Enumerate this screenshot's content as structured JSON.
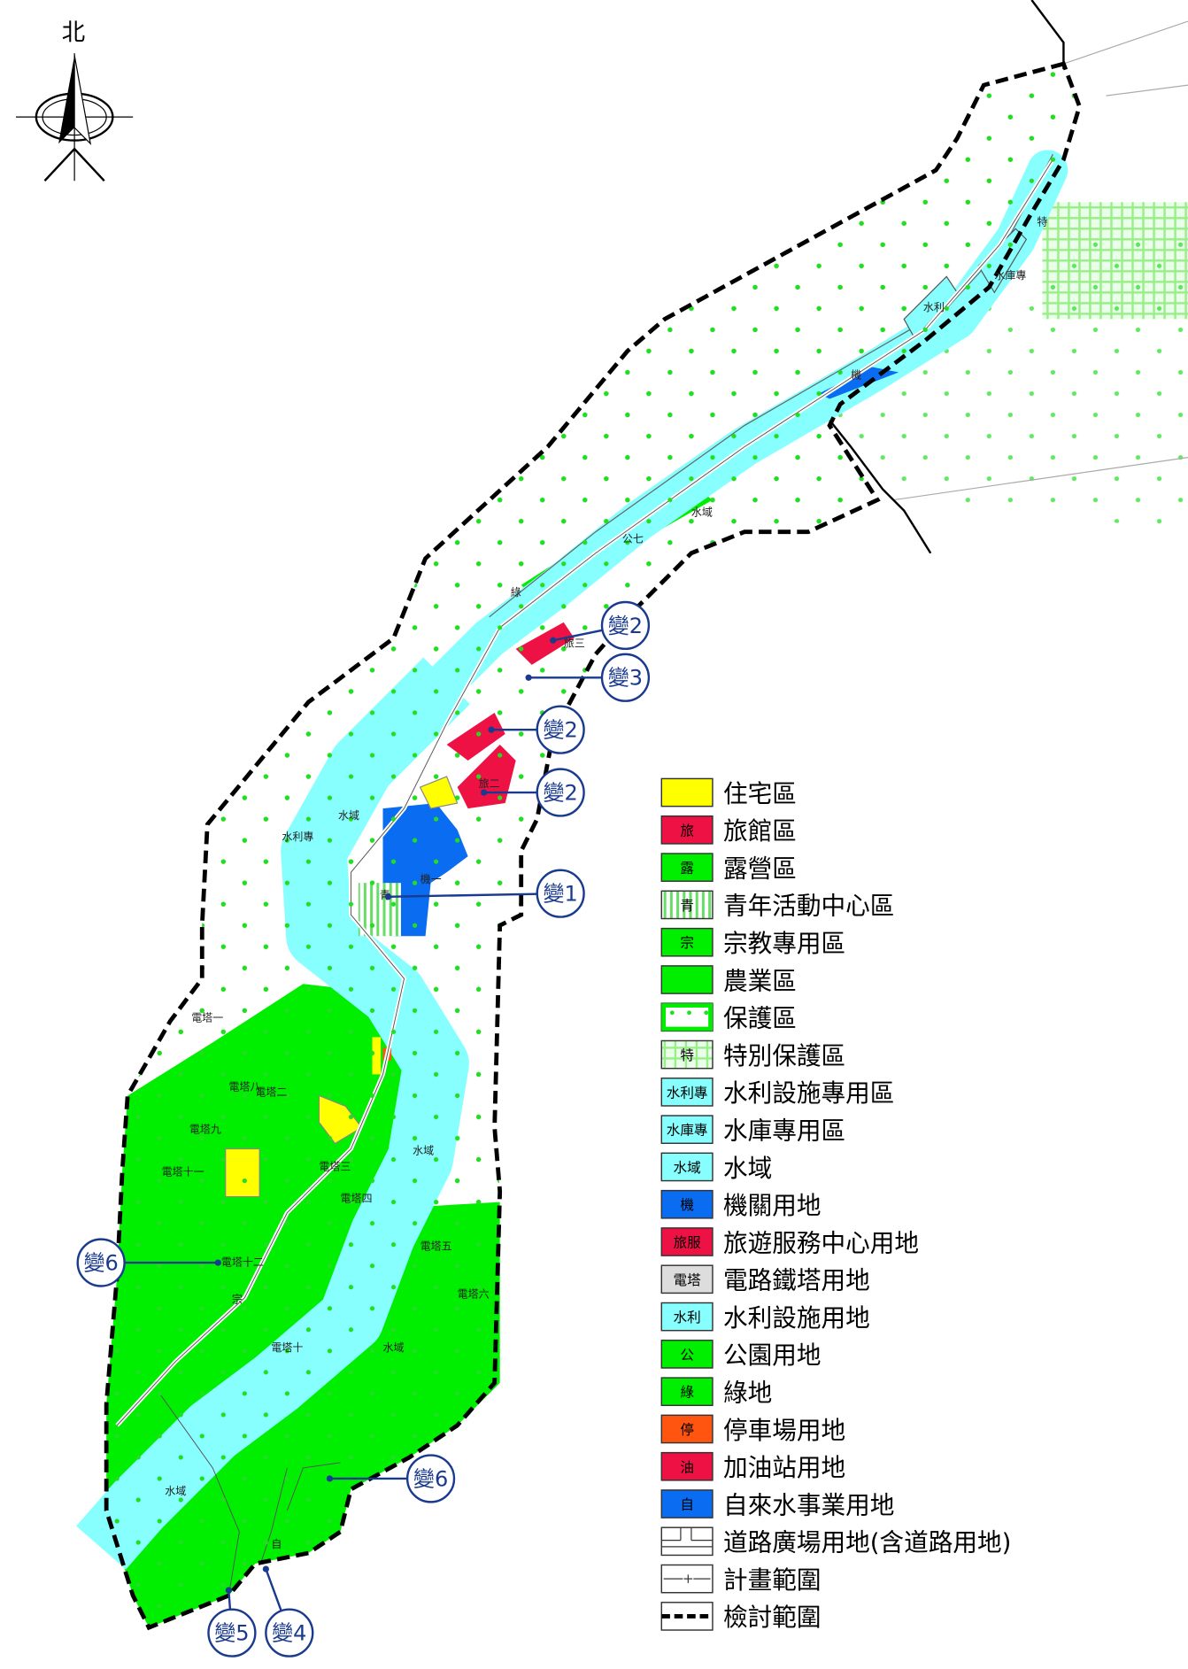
{
  "north_label": "北",
  "colors": {
    "protection_dot": "#22dd22",
    "agriculture": "#00ee00",
    "water": "#88ffff",
    "agency": "#0a6cf0",
    "hotel": "#ee1144",
    "residential": "#ffff00",
    "parking": "#ff5511",
    "callout": "#1a3a8f"
  },
  "legend": [
    {
      "swatch": "",
      "label": "住宅區",
      "color": "#ffff00"
    },
    {
      "swatch": "旅",
      "label": "旅館區",
      "color": "#ee1144"
    },
    {
      "swatch": "露",
      "label": "露營區",
      "color": "#00ee00"
    },
    {
      "swatch": "青",
      "label": "青年活動中心區",
      "color": "stripe"
    },
    {
      "swatch": "宗",
      "label": "宗教專用區",
      "color": "#00ee00"
    },
    {
      "swatch": "",
      "label": "農業區",
      "color": "#00ee00"
    },
    {
      "swatch": "",
      "label": "保護區",
      "color": "dots"
    },
    {
      "swatch": "特",
      "label": "特別保護區",
      "color": "grid"
    },
    {
      "swatch": "水利專",
      "label": "水利設施專用區",
      "color": "#88ffff"
    },
    {
      "swatch": "水庫專",
      "label": "水庫專用區",
      "color": "#88ffff"
    },
    {
      "swatch": "水域",
      "label": "水域",
      "color": "#88ffff"
    },
    {
      "swatch": "機",
      "label": "機關用地",
      "color": "#0a6cf0"
    },
    {
      "swatch": "旅服",
      "label": "旅遊服務中心用地",
      "color": "#ee1144"
    },
    {
      "swatch": "電塔",
      "label": "電路鐵塔用地",
      "color": "#dddddd"
    },
    {
      "swatch": "水利",
      "label": "水利設施用地",
      "color": "#88ffff"
    },
    {
      "swatch": "公",
      "label": "公園用地",
      "color": "#00ee00"
    },
    {
      "swatch": "綠",
      "label": "綠地",
      "color": "#00ee00"
    },
    {
      "swatch": "停",
      "label": "停車場用地",
      "color": "#ff5511"
    },
    {
      "swatch": "油",
      "label": "加油站用地",
      "color": "#ee1144"
    },
    {
      "swatch": "自",
      "label": "自來水事業用地",
      "color": "#0a6cf0"
    },
    {
      "swatch": "",
      "label": "道路廣場用地(含道路用地)",
      "color": "road"
    },
    {
      "swatch": "",
      "label": "計畫範圍",
      "color": "plan"
    },
    {
      "swatch": "",
      "label": "檢討範圍",
      "color": "review"
    }
  ],
  "callouts": [
    "變2",
    "變3",
    "變2",
    "變2",
    "變1",
    "變6",
    "變6",
    "變5",
    "變4"
  ],
  "map_labels": [
    "水域",
    "水域",
    "水域",
    "水域",
    "水域",
    "水庫專",
    "水利",
    "機",
    "機一",
    "青",
    "公七",
    "綠",
    "電塔一",
    "電塔二",
    "電塔三",
    "電塔四",
    "電塔五",
    "電塔六",
    "電塔八",
    "電塔九",
    "電塔十",
    "電塔十一",
    "電塔十二",
    "宗",
    "旅二",
    "旅三",
    "水利專",
    "特",
    "自"
  ]
}
